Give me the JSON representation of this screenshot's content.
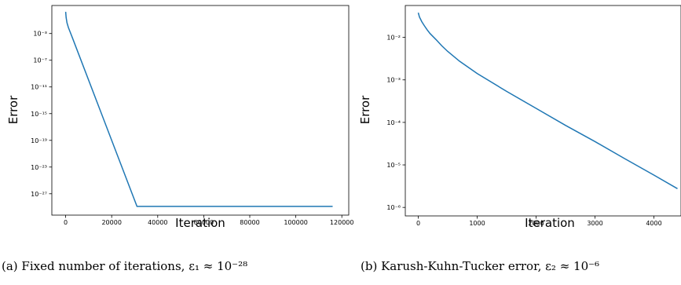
{
  "chart_data": [
    {
      "id": "a",
      "type": "line",
      "caption": "(a) Fixed number of iterations, ε₁ ≈ 10⁻²⁸",
      "xlabel": "Iteration",
      "ylabel": "Error",
      "y_scale": "log",
      "xlim": [
        -6000,
        123000
      ],
      "ylim_exp": [
        -30.2,
        1.2
      ],
      "xticks": [
        0,
        20000,
        40000,
        60000,
        80000,
        100000,
        120000
      ],
      "yticks_exp": [
        -3,
        -7,
        -11,
        -15,
        -19,
        -23,
        -27
      ],
      "grid": false,
      "series": [
        {
          "color": "#1f77b4",
          "x": [
            0,
            200,
            600,
            1200,
            2000,
            3000,
            31000,
            116000
          ],
          "y_exp": [
            0.25,
            -0.6,
            -1.4,
            -2.1,
            -2.8,
            -3.7,
            -28.9,
            -28.9
          ]
        }
      ]
    },
    {
      "id": "b",
      "type": "line",
      "caption": "(b) Karush-Kuhn-Tucker error, ε₂ ≈ 10⁻⁶",
      "xlabel": "Iteration",
      "ylabel": "Error",
      "y_scale": "log",
      "xlim": [
        -220,
        4460
      ],
      "ylim_exp": [
        -6.2,
        -1.25
      ],
      "xticks": [
        0,
        1000,
        2000,
        3000,
        4000
      ],
      "yticks_exp": [
        -2,
        -3,
        -4,
        -5,
        -6
      ],
      "grid": false,
      "series": [
        {
          "color": "#1f77b4",
          "x": [
            0,
            20,
            60,
            100,
            150,
            200,
            300,
            400,
            500,
            700,
            1000,
            1500,
            2000,
            2500,
            3000,
            3500,
            4000,
            4400
          ],
          "y_exp": [
            -1.42,
            -1.52,
            -1.63,
            -1.72,
            -1.82,
            -1.91,
            -2.05,
            -2.2,
            -2.33,
            -2.56,
            -2.85,
            -3.27,
            -3.67,
            -4.07,
            -4.45,
            -4.85,
            -5.24,
            -5.56
          ]
        }
      ]
    }
  ]
}
